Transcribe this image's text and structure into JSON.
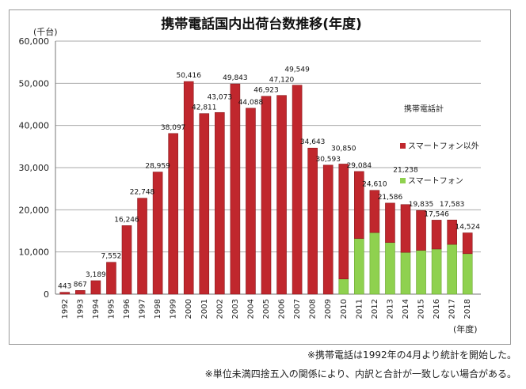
{
  "chart_data": {
    "type": "bar",
    "stacked": true,
    "title": "携帯電話国内出荷台数推移(年度)",
    "ylabel": "(千台)",
    "xlabel": "(年度)",
    "ylim": [
      0,
      60000
    ],
    "yticks": [
      "0",
      "10,000",
      "20,000",
      "30,000",
      "40,000",
      "50,000",
      "60,000"
    ],
    "categories": [
      "1992",
      "1993",
      "1994",
      "1995",
      "1996",
      "1997",
      "1998",
      "1999",
      "2000",
      "2001",
      "2002",
      "2003",
      "2004",
      "2005",
      "2006",
      "2007",
      "2008",
      "2009",
      "2010",
      "2011",
      "2012",
      "2013",
      "2014",
      "2015",
      "2016",
      "2017",
      "2018"
    ],
    "totals": [
      443,
      867,
      3189,
      7552,
      16246,
      22748,
      28959,
      38097,
      50416,
      42811,
      43073,
      49843,
      44088,
      46923,
      47120,
      49549,
      34643,
      30593,
      30850,
      29084,
      24610,
      21586,
      21238,
      19835,
      17546,
      17583,
      14524
    ],
    "total_labels": [
      "443",
      "867",
      "3,189",
      "7,552",
      "16,246",
      "22,748",
      "28,959",
      "38,097",
      "50,416",
      "42,811",
      "43,073",
      "49,843",
      "44,088",
      "46,923",
      "47,120",
      "49,549",
      "34,643",
      "30,593",
      "30,850",
      "29,084",
      "24,610",
      "21,586",
      "21,238",
      "19,835",
      "17,546",
      "17,583",
      "14,524"
    ],
    "series": [
      {
        "name": "スマートフォン",
        "color": "#8fd14f",
        "values": [
          0,
          0,
          0,
          0,
          0,
          0,
          0,
          0,
          0,
          0,
          0,
          0,
          0,
          0,
          0,
          0,
          0,
          0,
          3600,
          13200,
          14600,
          12250,
          9900,
          10400,
          10700,
          11800,
          9600
        ]
      },
      {
        "name": "スマートフォン以外",
        "color": "#c0272d",
        "values": [
          443,
          867,
          3189,
          7552,
          16246,
          22748,
          28959,
          38097,
          50416,
          42811,
          43073,
          49843,
          44088,
          46923,
          47120,
          49549,
          34643,
          30593,
          27250,
          15884,
          10010,
          9336,
          11338,
          9435,
          6846,
          5783,
          4924
        ]
      }
    ],
    "legend_title": "携帯電話計",
    "legend_placement": "right",
    "grid": true
  },
  "notes": [
    "※携帯電話は1992年の4月より統計を開始した。",
    "※単位未満四捨五入の関係により、内訳と合計が一致しない場合がある。"
  ]
}
